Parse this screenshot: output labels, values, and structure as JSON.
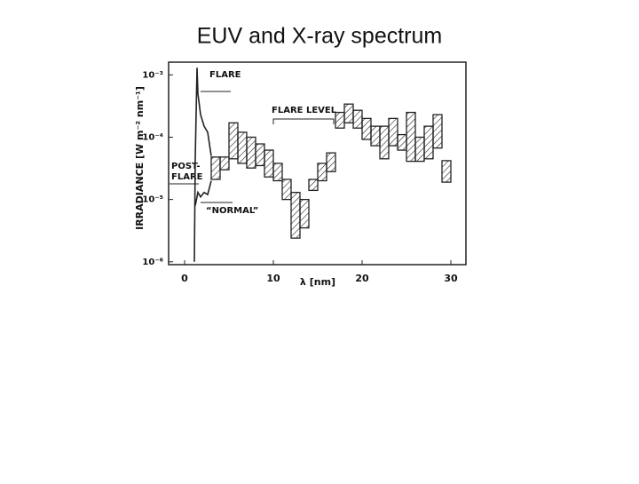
{
  "chart_data": {
    "type": "range-bar",
    "title": "EUV and X-ray spectrum",
    "x_label": "λ [nm]",
    "y_label": "IRRADIANCE [W m⁻² nm⁻¹]",
    "log_y": true,
    "color": "#222",
    "xlim": [
      -1.8,
      31.7
    ],
    "xticks": [
      0,
      10,
      20,
      30
    ],
    "ylim": [
      9e-07,
      0.0016
    ],
    "yticks": [
      {
        "value": 0.001,
        "label": "10⁻³"
      },
      {
        "value": 0.0001,
        "label": "10⁻⁴"
      },
      {
        "value": 1e-05,
        "label": "10⁻⁵"
      },
      {
        "value": 1e-06,
        "label": "10⁻⁶"
      }
    ],
    "bins": [
      3,
      4,
      5,
      6,
      7,
      8,
      9,
      10,
      11,
      12,
      13,
      14,
      15,
      16,
      17,
      18,
      19,
      20,
      21,
      22,
      23,
      24,
      25,
      26,
      27,
      28,
      29,
      30
    ],
    "high": [
      4.8e-05,
      4.8e-05,
      0.00017,
      0.00012,
      0.0001,
      7.8e-05,
      6.2e-05,
      3.8e-05,
      2.1e-05,
      1.3e-05,
      1e-05,
      2.1e-05,
      3.8e-05,
      5.6e-05,
      0.00025,
      0.00034,
      0.00027,
      0.0002,
      0.00015,
      0.00015,
      0.0002,
      0.00011,
      0.00025,
      0.0001,
      0.00015,
      0.00023,
      4.2e-05
    ],
    "low": [
      2.1e-05,
      3e-05,
      4.5e-05,
      3.8e-05,
      3.2e-05,
      3.5e-05,
      2.3e-05,
      2e-05,
      1e-05,
      2.4e-06,
      3.5e-06,
      1.4e-05,
      2e-05,
      2.8e-05,
      0.00014,
      0.00017,
      0.00014,
      9.2e-05,
      7.3e-05,
      4.5e-05,
      7.3e-05,
      6.2e-05,
      4.1e-05,
      4.1e-05,
      4.5e-05,
      6.7e-05,
      1.9e-05
    ],
    "lines": [
      {
        "x": [
          1.1,
          1.2,
          1.4,
          1.5,
          1.8,
          2.2,
          2.6,
          3.0
        ],
        "values": [
          1e-06,
          4.5e-05,
          0.0013,
          0.0005,
          0.00023,
          0.00015,
          0.00012,
          5e-05
        ]
      },
      {
        "x": [
          1.2,
          1.5,
          1.8,
          2.2,
          2.6,
          3.0
        ],
        "values": [
          8e-06,
          1.3e-05,
          1.1e-05,
          1.3e-05,
          1.2e-05,
          2e-05
        ]
      }
    ],
    "annotations": [
      "FLARE",
      "FLARE LEVEL",
      "POST-",
      "FLARE",
      "“NORMAL”"
    ]
  }
}
